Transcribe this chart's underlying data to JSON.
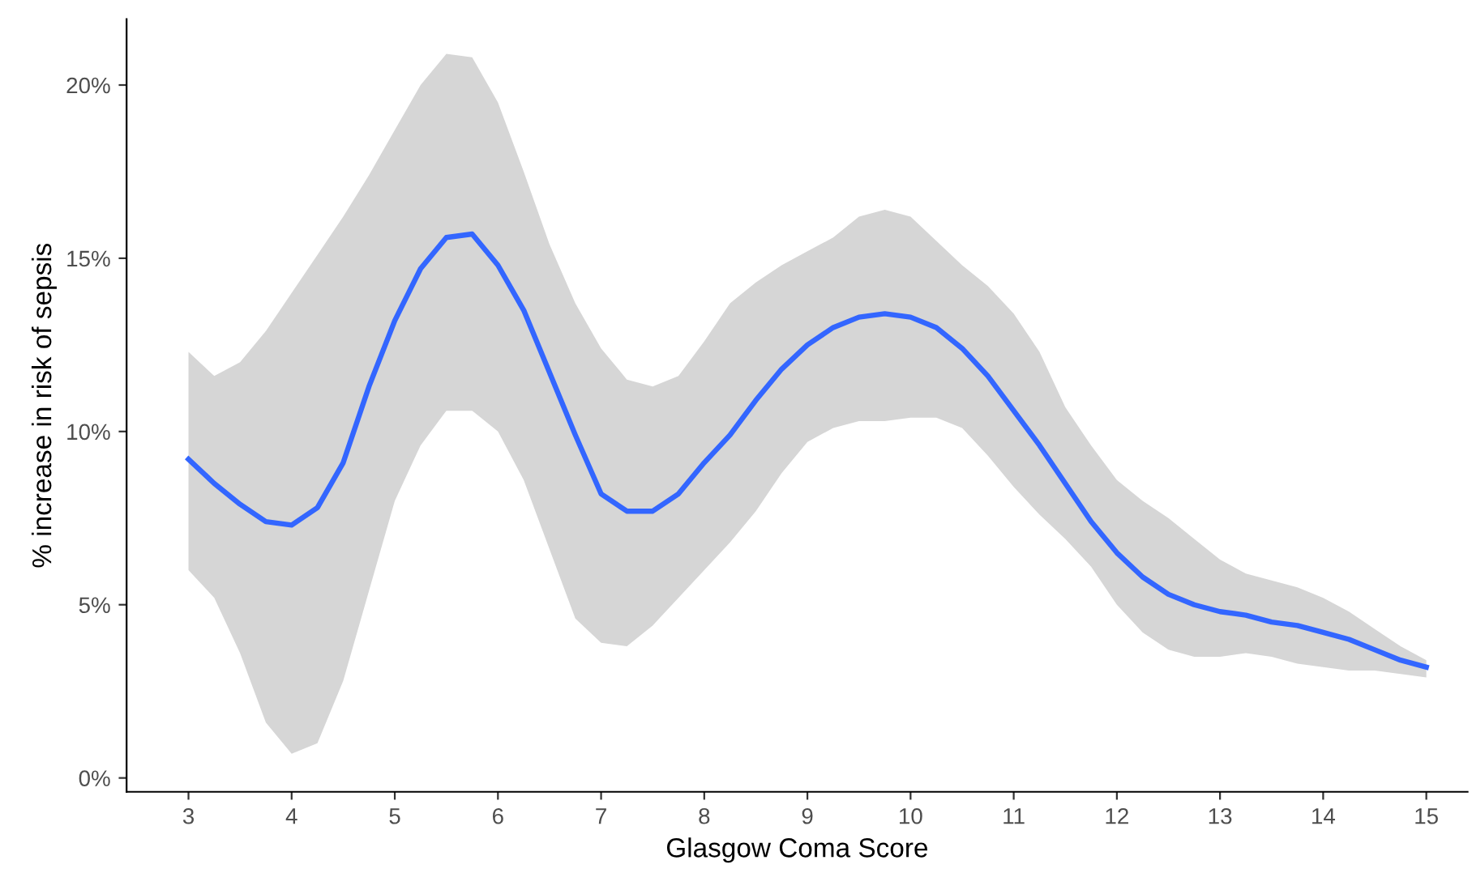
{
  "chart_data": {
    "type": "line",
    "xlabel": "Glasgow Coma Score",
    "ylabel": "% increase in risk of sepsis",
    "x": [
      3,
      3.25,
      3.5,
      3.75,
      4,
      4.25,
      4.5,
      4.75,
      5,
      5.25,
      5.5,
      5.75,
      6,
      6.25,
      6.5,
      6.75,
      7,
      7.25,
      7.5,
      7.75,
      8,
      8.25,
      8.5,
      8.75,
      9,
      9.25,
      9.5,
      9.75,
      10,
      10.25,
      10.5,
      10.75,
      11,
      11.25,
      11.5,
      11.75,
      12,
      12.25,
      12.5,
      12.75,
      13,
      13.25,
      13.5,
      13.75,
      14,
      14.25,
      14.5,
      14.75,
      15
    ],
    "series": [
      {
        "color": "#3366ff",
        "values": [
          9.2,
          8.5,
          7.9,
          7.4,
          7.3,
          7.8,
          9.1,
          11.3,
          13.2,
          14.7,
          15.6,
          15.7,
          14.8,
          13.5,
          11.7,
          9.9,
          8.2,
          7.7,
          7.7,
          8.2,
          9.1,
          9.9,
          10.9,
          11.8,
          12.5,
          13.0,
          13.3,
          13.4,
          13.3,
          13.0,
          12.4,
          11.6,
          10.6,
          9.6,
          8.5,
          7.4,
          6.5,
          5.8,
          5.3,
          5.0,
          4.8,
          4.7,
          4.5,
          4.4,
          4.2,
          4.0,
          3.7,
          3.4,
          3.2
        ],
        "upper": [
          12.3,
          11.6,
          12.0,
          12.9,
          14.0,
          15.1,
          16.2,
          17.4,
          18.7,
          20.0,
          20.9,
          20.8,
          19.5,
          17.5,
          15.4,
          13.7,
          12.4,
          11.5,
          11.3,
          11.6,
          12.6,
          13.7,
          14.3,
          14.8,
          15.2,
          15.6,
          16.2,
          16.4,
          16.2,
          15.5,
          14.8,
          14.2,
          13.4,
          12.3,
          10.7,
          9.6,
          8.6,
          8.0,
          7.5,
          6.9,
          6.3,
          5.9,
          5.7,
          5.5,
          5.2,
          4.8,
          4.3,
          3.8,
          3.4
        ],
        "lower": [
          6.0,
          5.2,
          3.6,
          1.6,
          0.7,
          1.0,
          2.8,
          5.4,
          8.0,
          9.6,
          10.6,
          10.6,
          10.0,
          8.6,
          6.6,
          4.6,
          3.9,
          3.8,
          4.4,
          5.2,
          6.0,
          6.8,
          7.7,
          8.8,
          9.7,
          10.1,
          10.3,
          10.3,
          10.4,
          10.4,
          10.1,
          9.3,
          8.4,
          7.6,
          6.9,
          6.1,
          5.0,
          4.2,
          3.7,
          3.5,
          3.5,
          3.6,
          3.5,
          3.3,
          3.2,
          3.1,
          3.1,
          3.0,
          2.9
        ]
      }
    ],
    "xlim": [
      2.4,
      15.4
    ],
    "xticks": [
      3,
      4,
      5,
      6,
      7,
      8,
      9,
      10,
      11,
      12,
      13,
      14,
      15
    ],
    "ylim": [
      -0.4,
      21.9
    ],
    "yticks": [
      {
        "value": 0,
        "label": "0%"
      },
      {
        "value": 5,
        "label": "5%"
      },
      {
        "value": 10,
        "label": "10%"
      },
      {
        "value": 15,
        "label": "15%"
      },
      {
        "value": 20,
        "label": "20%"
      }
    ],
    "grid": false,
    "marker": "none",
    "line_style": "solid"
  }
}
